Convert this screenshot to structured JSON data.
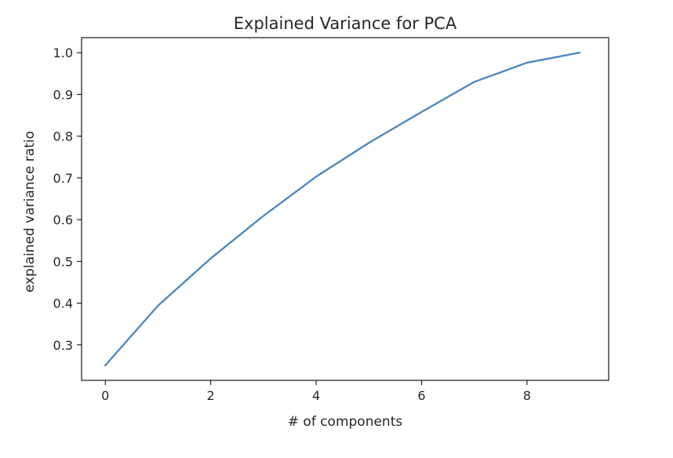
{
  "chart_data": {
    "type": "line",
    "title": "Explained Variance for PCA",
    "xlabel": "# of components",
    "ylabel": "explained variance ratio",
    "x": [
      0,
      1,
      2,
      3,
      4,
      5,
      6,
      7,
      8,
      9
    ],
    "series": [
      {
        "values": [
          0.251,
          0.394,
          0.507,
          0.609,
          0.703,
          0.784,
          0.858,
          0.93,
          0.976,
          1.0
        ],
        "color": "#4a86c0"
      }
    ],
    "xlim": [
      -0.45,
      9.55
    ],
    "ylim": [
      0.215,
      1.036
    ],
    "xticks": [
      0,
      2,
      4,
      6,
      8
    ],
    "xtick_labels": [
      "0",
      "2",
      "4",
      "6",
      "8"
    ],
    "yticks": [
      0.3,
      0.4,
      0.5,
      0.6,
      0.7,
      0.8,
      0.9,
      1.0
    ],
    "ytick_labels": [
      "0.3",
      "0.4",
      "0.5",
      "0.6",
      "0.7",
      "0.8",
      "0.9",
      "1.0"
    ],
    "grid": false,
    "legend": "none"
  }
}
